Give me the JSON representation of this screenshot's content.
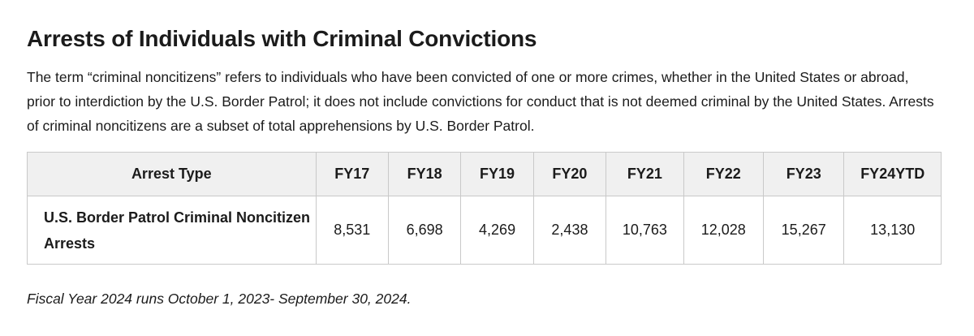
{
  "title": "Arrests of Individuals with Criminal Convictions",
  "intro": "The term “criminal noncitizens” refers to individuals who have been convicted of one or more crimes, whether in the United States or abroad, prior to interdiction by the U.S. Border Patrol; it does not include convictions for conduct that is not deemed criminal by the United States. Arrests of criminal noncitizens are a subset of total apprehensions by U.S. Border Patrol.",
  "table": {
    "headers": [
      "Arrest Type",
      "FY17",
      "FY18",
      "FY19",
      "FY20",
      "FY21",
      "FY22",
      "FY23",
      "FY24YTD"
    ],
    "rows": [
      {
        "label": "U.S. Border Patrol Criminal Noncitizen Arrests",
        "values": [
          "8,531",
          "6,698",
          "4,269",
          "2,438",
          "10,763",
          "12,028",
          "15,267",
          "13,130"
        ]
      }
    ]
  },
  "footnote": "Fiscal Year 2024 runs October 1, 2023- September 30, 2024."
}
